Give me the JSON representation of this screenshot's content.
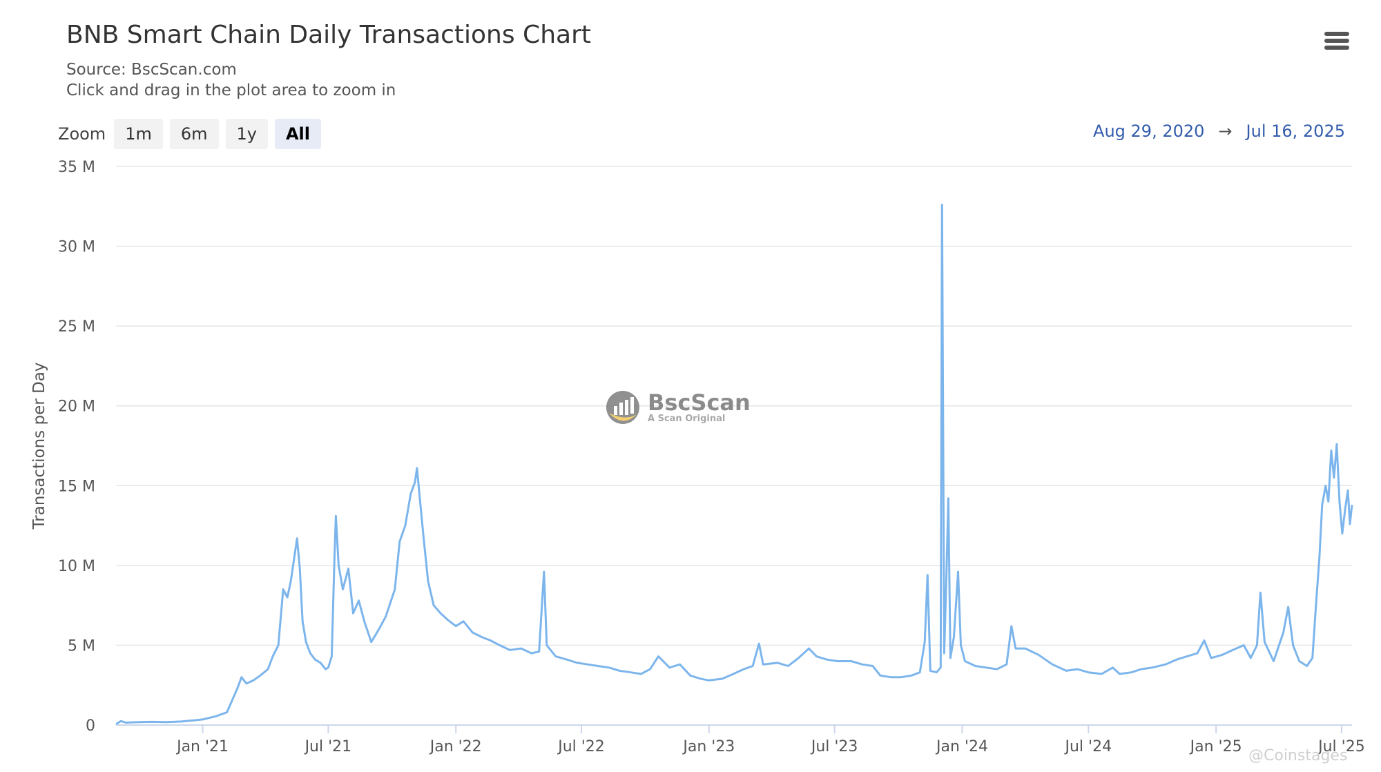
{
  "header": {
    "title": "BNB Smart Chain Daily Transactions Chart",
    "source": "Source: BscScan.com",
    "hint": "Click and drag in the plot area to zoom in"
  },
  "menu": {
    "icon": "hamburger-menu-icon"
  },
  "zoom": {
    "label": "Zoom",
    "buttons": [
      "1m",
      "6m",
      "1y",
      "All"
    ],
    "active": "All"
  },
  "range": {
    "from": "Aug 29, 2020",
    "arrow": "→",
    "to": "Jul 16, 2025"
  },
  "watermark": {
    "name": "BscScan",
    "tagline": "A Scan Original",
    "icon": "bscscan-logo-icon"
  },
  "credit": "@Coinstages",
  "colors": {
    "line": "#7cb5ec",
    "grid": "#e6e6e6",
    "axis": "#ccd6eb",
    "range_text": "#335cad"
  },
  "chart_data": {
    "type": "line",
    "title": "BNB Smart Chain Daily Transactions Chart",
    "subtitle": "Source: BscScan.com",
    "ylabel": "Transactions per Day",
    "xlabel": "",
    "ylim": [
      0,
      35000000
    ],
    "xlim": [
      "2020-08-29",
      "2025-07-16"
    ],
    "grid": true,
    "y_ticks": [
      {
        "value": 0,
        "label": "0"
      },
      {
        "value": 5000000,
        "label": "5 M"
      },
      {
        "value": 10000000,
        "label": "10 M"
      },
      {
        "value": 15000000,
        "label": "15 M"
      },
      {
        "value": 20000000,
        "label": "20 M"
      },
      {
        "value": 25000000,
        "label": "25 M"
      },
      {
        "value": 30000000,
        "label": "30 M"
      },
      {
        "value": 35000000,
        "label": "35 M"
      }
    ],
    "x_ticks": [
      {
        "date": "2021-01-01",
        "label": "Jan '21"
      },
      {
        "date": "2021-07-01",
        "label": "Jul '21"
      },
      {
        "date": "2022-01-01",
        "label": "Jan '22"
      },
      {
        "date": "2022-07-01",
        "label": "Jul '22"
      },
      {
        "date": "2023-01-01",
        "label": "Jan '23"
      },
      {
        "date": "2023-07-01",
        "label": "Jul '23"
      },
      {
        "date": "2024-01-01",
        "label": "Jan '24"
      },
      {
        "date": "2024-07-01",
        "label": "Jul '24"
      },
      {
        "date": "2025-01-01",
        "label": "Jan '25"
      },
      {
        "date": "2025-07-01",
        "label": "Jul '25"
      }
    ],
    "series": [
      {
        "name": "",
        "points": [
          [
            "2020-08-29",
            50000
          ],
          [
            "2020-09-05",
            250000
          ],
          [
            "2020-09-12",
            150000
          ],
          [
            "2020-10-01",
            180000
          ],
          [
            "2020-10-20",
            200000
          ],
          [
            "2020-11-10",
            180000
          ],
          [
            "2020-12-01",
            220000
          ],
          [
            "2020-12-20",
            300000
          ],
          [
            "2021-01-01",
            350000
          ],
          [
            "2021-01-20",
            550000
          ],
          [
            "2021-02-05",
            800000
          ],
          [
            "2021-02-12",
            1500000
          ],
          [
            "2021-02-20",
            2300000
          ],
          [
            "2021-02-26",
            3000000
          ],
          [
            "2021-03-05",
            2600000
          ],
          [
            "2021-03-15",
            2800000
          ],
          [
            "2021-03-25",
            3100000
          ],
          [
            "2021-04-05",
            3500000
          ],
          [
            "2021-04-12",
            4300000
          ],
          [
            "2021-04-20",
            5000000
          ],
          [
            "2021-04-27",
            8500000
          ],
          [
            "2021-05-03",
            8000000
          ],
          [
            "2021-05-08",
            9000000
          ],
          [
            "2021-05-13",
            10500000
          ],
          [
            "2021-05-17",
            11700000
          ],
          [
            "2021-05-21",
            9800000
          ],
          [
            "2021-05-25",
            6500000
          ],
          [
            "2021-05-30",
            5200000
          ],
          [
            "2021-06-05",
            4500000
          ],
          [
            "2021-06-12",
            4100000
          ],
          [
            "2021-06-20",
            3900000
          ],
          [
            "2021-06-27",
            3500000
          ],
          [
            "2021-07-01",
            3600000
          ],
          [
            "2021-07-06",
            4300000
          ],
          [
            "2021-07-10",
            10500000
          ],
          [
            "2021-07-12",
            13100000
          ],
          [
            "2021-07-16",
            10000000
          ],
          [
            "2021-07-22",
            8500000
          ],
          [
            "2021-07-30",
            9800000
          ],
          [
            "2021-08-06",
            7000000
          ],
          [
            "2021-08-14",
            7800000
          ],
          [
            "2021-08-22",
            6500000
          ],
          [
            "2021-09-01",
            5200000
          ],
          [
            "2021-09-12",
            6000000
          ],
          [
            "2021-09-22",
            6800000
          ],
          [
            "2021-10-05",
            8500000
          ],
          [
            "2021-10-12",
            11500000
          ],
          [
            "2021-10-20",
            12500000
          ],
          [
            "2021-10-28",
            14500000
          ],
          [
            "2021-11-03",
            15200000
          ],
          [
            "2021-11-06",
            16100000
          ],
          [
            "2021-11-10",
            14200000
          ],
          [
            "2021-11-16",
            11500000
          ],
          [
            "2021-11-22",
            9000000
          ],
          [
            "2021-11-30",
            7500000
          ],
          [
            "2021-12-10",
            7000000
          ],
          [
            "2021-12-20",
            6600000
          ],
          [
            "2022-01-01",
            6200000
          ],
          [
            "2022-01-12",
            6500000
          ],
          [
            "2022-01-25",
            5800000
          ],
          [
            "2022-02-08",
            5500000
          ],
          [
            "2022-02-20",
            5300000
          ],
          [
            "2022-03-05",
            5000000
          ],
          [
            "2022-03-20",
            4700000
          ],
          [
            "2022-04-05",
            4800000
          ],
          [
            "2022-04-20",
            4500000
          ],
          [
            "2022-05-01",
            4600000
          ],
          [
            "2022-05-08",
            9600000
          ],
          [
            "2022-05-12",
            5000000
          ],
          [
            "2022-05-25",
            4300000
          ],
          [
            "2022-06-10",
            4100000
          ],
          [
            "2022-06-25",
            3900000
          ],
          [
            "2022-07-10",
            3800000
          ],
          [
            "2022-07-25",
            3700000
          ],
          [
            "2022-08-10",
            3600000
          ],
          [
            "2022-08-25",
            3400000
          ],
          [
            "2022-09-10",
            3300000
          ],
          [
            "2022-09-25",
            3200000
          ],
          [
            "2022-10-08",
            3500000
          ],
          [
            "2022-10-20",
            4300000
          ],
          [
            "2022-11-05",
            3600000
          ],
          [
            "2022-11-20",
            3800000
          ],
          [
            "2022-12-05",
            3100000
          ],
          [
            "2022-12-20",
            2900000
          ],
          [
            "2023-01-01",
            2800000
          ],
          [
            "2023-01-20",
            2900000
          ],
          [
            "2023-02-05",
            3200000
          ],
          [
            "2023-02-20",
            3500000
          ],
          [
            "2023-03-05",
            3700000
          ],
          [
            "2023-03-14",
            5100000
          ],
          [
            "2023-03-20",
            3800000
          ],
          [
            "2023-04-10",
            3900000
          ],
          [
            "2023-04-25",
            3700000
          ],
          [
            "2023-05-10",
            4200000
          ],
          [
            "2023-05-25",
            4800000
          ],
          [
            "2023-06-05",
            4300000
          ],
          [
            "2023-06-20",
            4100000
          ],
          [
            "2023-07-05",
            4000000
          ],
          [
            "2023-07-25",
            4000000
          ],
          [
            "2023-08-10",
            3800000
          ],
          [
            "2023-08-25",
            3700000
          ],
          [
            "2023-09-05",
            3100000
          ],
          [
            "2023-09-20",
            3000000
          ],
          [
            "2023-10-05",
            3000000
          ],
          [
            "2023-10-20",
            3100000
          ],
          [
            "2023-11-01",
            3300000
          ],
          [
            "2023-11-08",
            5200000
          ],
          [
            "2023-11-12",
            9400000
          ],
          [
            "2023-11-16",
            3400000
          ],
          [
            "2023-11-25",
            3300000
          ],
          [
            "2023-12-01",
            3600000
          ],
          [
            "2023-12-03",
            32600000
          ],
          [
            "2023-12-06",
            4500000
          ],
          [
            "2023-12-09",
            9000000
          ],
          [
            "2023-12-12",
            14200000
          ],
          [
            "2023-12-15",
            4200000
          ],
          [
            "2023-12-20",
            5500000
          ],
          [
            "2023-12-26",
            9600000
          ],
          [
            "2023-12-30",
            5000000
          ],
          [
            "2024-01-05",
            4000000
          ],
          [
            "2024-01-20",
            3700000
          ],
          [
            "2024-02-05",
            3600000
          ],
          [
            "2024-02-20",
            3500000
          ],
          [
            "2024-03-05",
            3800000
          ],
          [
            "2024-03-12",
            6200000
          ],
          [
            "2024-03-18",
            4800000
          ],
          [
            "2024-04-01",
            4800000
          ],
          [
            "2024-04-20",
            4400000
          ],
          [
            "2024-05-10",
            3800000
          ],
          [
            "2024-05-30",
            3400000
          ],
          [
            "2024-06-15",
            3500000
          ],
          [
            "2024-07-01",
            3300000
          ],
          [
            "2024-07-20",
            3200000
          ],
          [
            "2024-08-05",
            3600000
          ],
          [
            "2024-08-15",
            3200000
          ],
          [
            "2024-09-01",
            3300000
          ],
          [
            "2024-09-15",
            3500000
          ],
          [
            "2024-10-01",
            3600000
          ],
          [
            "2024-10-20",
            3800000
          ],
          [
            "2024-11-05",
            4100000
          ],
          [
            "2024-11-20",
            4300000
          ],
          [
            "2024-12-05",
            4500000
          ],
          [
            "2024-12-15",
            5300000
          ],
          [
            "2024-12-25",
            4200000
          ],
          [
            "2025-01-10",
            4400000
          ],
          [
            "2025-01-25",
            4700000
          ],
          [
            "2025-02-10",
            5000000
          ],
          [
            "2025-02-20",
            4200000
          ],
          [
            "2025-03-01",
            5000000
          ],
          [
            "2025-03-06",
            8300000
          ],
          [
            "2025-03-12",
            5200000
          ],
          [
            "2025-03-25",
            4000000
          ],
          [
            "2025-04-08",
            5800000
          ],
          [
            "2025-04-15",
            7400000
          ],
          [
            "2025-04-22",
            5000000
          ],
          [
            "2025-05-01",
            4000000
          ],
          [
            "2025-05-12",
            3700000
          ],
          [
            "2025-05-20",
            4200000
          ],
          [
            "2025-05-25",
            7500000
          ],
          [
            "2025-05-30",
            10500000
          ],
          [
            "2025-06-03",
            13800000
          ],
          [
            "2025-06-08",
            15000000
          ],
          [
            "2025-06-12",
            14000000
          ],
          [
            "2025-06-16",
            17200000
          ],
          [
            "2025-06-20",
            15500000
          ],
          [
            "2025-06-24",
            17600000
          ],
          [
            "2025-06-28",
            14000000
          ],
          [
            "2025-07-02",
            12000000
          ],
          [
            "2025-07-06",
            13500000
          ],
          [
            "2025-07-10",
            14700000
          ],
          [
            "2025-07-13",
            12600000
          ],
          [
            "2025-07-16",
            13800000
          ]
        ]
      }
    ]
  }
}
